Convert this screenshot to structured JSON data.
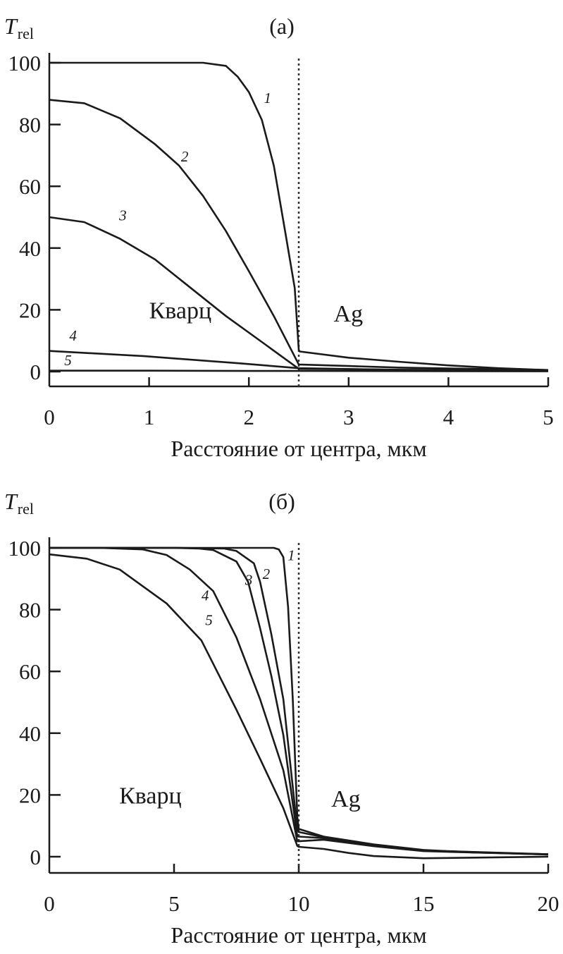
{
  "chart_data": [
    {
      "type": "line",
      "title": "(а)",
      "ylabel": {
        "main": "T",
        "sub": "rel"
      },
      "xlabel": "Расстояние от центра, мкм",
      "xlim": [
        0,
        5
      ],
      "ylim": [
        0,
        100
      ],
      "xticks": [
        0,
        1,
        2,
        3,
        4,
        5
      ],
      "yticks": [
        0,
        20,
        40,
        60,
        80,
        100
      ],
      "interface_x": 2.5,
      "region_labels": [
        {
          "text": "Кварц",
          "x": 1.0,
          "y": 20
        },
        {
          "text": "Ag",
          "x": 2.85,
          "y": 19
        }
      ],
      "series": [
        {
          "name": "1",
          "label_at": [
            2.15,
            87
          ],
          "x": [
            0,
            0.5,
            1.0,
            1.54,
            1.77,
            1.89,
            2.0,
            2.13,
            2.25,
            2.36,
            2.46,
            2.5,
            2.51,
            3.0,
            3.5,
            4.0,
            4.5,
            5.0
          ],
          "y": [
            100,
            100,
            100,
            100,
            99,
            95.4,
            90.5,
            81.5,
            66.7,
            46,
            27,
            7,
            6.5,
            4.5,
            3.2,
            2.0,
            1.1,
            0.5
          ]
        },
        {
          "name": "2",
          "label_at": [
            1.32,
            68
          ],
          "x": [
            0,
            0.35,
            0.71,
            1.06,
            1.3,
            1.54,
            1.77,
            2.0,
            2.25,
            2.5,
            3.0,
            3.5,
            4.0,
            5.0
          ],
          "y": [
            88,
            86.9,
            82,
            73.6,
            66.7,
            56.9,
            45.5,
            32.5,
            18,
            2.3,
            1.8,
            1.3,
            1.0,
            0.5
          ]
        },
        {
          "name": "3",
          "label_at": [
            0.7,
            49
          ],
          "x": [
            0,
            0.35,
            0.71,
            1.06,
            1.42,
            1.77,
            2.13,
            2.5,
            3.5,
            5.0
          ],
          "y": [
            50,
            48.4,
            43,
            36.3,
            27,
            18,
            9.6,
            0.9,
            0.6,
            0.3
          ]
        },
        {
          "name": "4",
          "label_at": [
            0.2,
            10
          ],
          "x": [
            0,
            0.95,
            1.9,
            2.5,
            3.5,
            5.0
          ],
          "y": [
            6.7,
            5,
            2.7,
            1.1,
            0.6,
            0.3
          ]
        },
        {
          "name": "5",
          "label_at": [
            0.15,
            2
          ],
          "x": [
            0,
            1.0,
            2.0,
            2.5,
            5.0
          ],
          "y": [
            0.3,
            0.3,
            0.2,
            0.2,
            0.1
          ]
        }
      ]
    },
    {
      "type": "line",
      "title": "(б)",
      "ylabel": {
        "main": "T",
        "sub": "rel"
      },
      "xlabel": "Расстояние от центра, мкм",
      "xlim": [
        0,
        20
      ],
      "ylim": [
        0,
        100
      ],
      "xticks": [
        0,
        5,
        10,
        15,
        20
      ],
      "yticks": [
        0,
        20,
        40,
        60,
        80,
        100
      ],
      "interface_x": 10,
      "region_labels": [
        {
          "text": "Кварц",
          "x": 2.8,
          "y": 20
        },
        {
          "text": "Ag",
          "x": 11.3,
          "y": 19
        }
      ],
      "series": [
        {
          "name": "1",
          "label_at": [
            9.55,
            96
          ],
          "x": [
            0,
            5,
            9.0,
            9.2,
            9.38,
            9.57,
            9.76,
            9.94,
            10.0,
            11,
            13,
            15,
            17,
            20
          ],
          "y": [
            100,
            100,
            100,
            99.5,
            97,
            81,
            51,
            13,
            9,
            6.5,
            4,
            2.2,
            1.4,
            0.8
          ]
        },
        {
          "name": "2",
          "label_at": [
            8.55,
            90
          ],
          "x": [
            0,
            5,
            7.0,
            7.5,
            8.2,
            8.45,
            8.9,
            9.38,
            9.94,
            10.0,
            11,
            13,
            15,
            20
          ],
          "y": [
            100,
            100,
            99.8,
            99,
            95,
            89,
            72,
            51,
            9,
            8,
            6.3,
            3.8,
            2.0,
            0.8
          ]
        },
        {
          "name": "3",
          "label_at": [
            7.85,
            88
          ],
          "x": [
            0,
            5,
            6.0,
            6.57,
            7.5,
            7.97,
            8.45,
            8.9,
            9.38,
            9.94,
            10.0,
            11,
            13,
            15,
            20
          ],
          "y": [
            100,
            100,
            99.8,
            99.3,
            95.6,
            89,
            74,
            58.5,
            39.4,
            6.6,
            6.5,
            6.0,
            3.6,
            2.0,
            0.7
          ]
        },
        {
          "name": "4",
          "label_at": [
            6.1,
            83
          ],
          "x": [
            0,
            2,
            3.75,
            4.7,
            5.63,
            6.57,
            7.5,
            8.45,
            9.38,
            9.94,
            10.0,
            11,
            13,
            15,
            20
          ],
          "y": [
            100,
            100,
            99.5,
            97.7,
            93,
            86,
            71,
            51,
            28,
            5,
            5,
            5.5,
            3.4,
            1.8,
            0.7
          ]
        },
        {
          "name": "5",
          "label_at": [
            6.25,
            75
          ],
          "x": [
            0,
            1.5,
            2.82,
            4.7,
            6.1,
            7.5,
            8.45,
            9.38,
            9.94,
            10.0,
            11,
            12,
            13,
            15,
            20
          ],
          "y": [
            97.9,
            96.5,
            93,
            82,
            70,
            47.6,
            31.7,
            15.7,
            3.5,
            3.2,
            2.5,
            1.2,
            0.2,
            -0.5,
            0
          ]
        }
      ]
    }
  ]
}
